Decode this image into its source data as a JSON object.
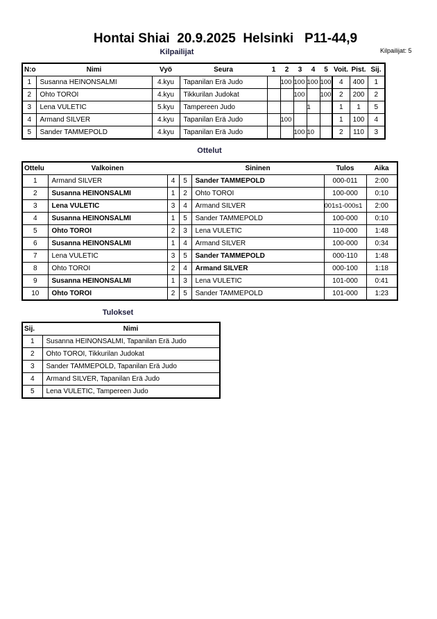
{
  "title": "Hontai Shiai  20.9.2025  Helsinki   P11-44,9",
  "competitors_heading": "Kilpailijat",
  "competitor_count": "Kilpailijat: 5",
  "competitors": {
    "headers": [
      "N:o",
      "Nimi",
      "Vyö",
      "Seura",
      "1",
      "2",
      "3",
      "4",
      "5",
      "Voit.",
      "Pist.",
      "Sij."
    ],
    "rows": [
      [
        "1",
        "Susanna HEINONSALMI",
        "4.kyu",
        "Tapanilan Erä Judo",
        "",
        "100",
        "100",
        "100",
        "100",
        "4",
        "400",
        "1"
      ],
      [
        "2",
        "Ohto TOROI",
        "4.kyu",
        "Tikkurilan Judokat",
        "",
        "",
        "100",
        "",
        "100",
        "2",
        "200",
        "2"
      ],
      [
        "3",
        "Lena VULETIC",
        "5.kyu",
        "Tampereen Judo",
        "",
        "",
        "",
        "1",
        "",
        "1",
        "1",
        "5"
      ],
      [
        "4",
        "Armand SILVER",
        "4.kyu",
        "Tapanilan Erä Judo",
        "",
        "100",
        "",
        "",
        "",
        "1",
        "100",
        "4"
      ],
      [
        "5",
        "Sander TAMMEPOLD",
        "4.kyu",
        "Tapanilan Erä Judo",
        "",
        "",
        "100",
        "10",
        "",
        "2",
        "110",
        "3"
      ]
    ]
  },
  "matches_heading": "Ottelut",
  "matches": {
    "headers": [
      "Ottelu",
      "Valkoinen",
      "",
      "",
      "Sininen",
      "Tulos",
      "Aika"
    ],
    "rows": [
      {
        "no": "1",
        "white": "Armand SILVER",
        "wn": "4",
        "bn": "5",
        "blue": "Sander TAMMEPOLD",
        "result": "000-011",
        "time": "2:00",
        "winner": "blue"
      },
      {
        "no": "2",
        "white": "Susanna HEINONSALMI",
        "wn": "1",
        "bn": "2",
        "blue": "Ohto TOROI",
        "result": "100-000",
        "time": "0:10",
        "winner": "white"
      },
      {
        "no": "3",
        "white": "Lena VULETIC",
        "wn": "3",
        "bn": "4",
        "blue": "Armand SILVER",
        "result": "001s1-000s1",
        "time": "2:00",
        "winner": "white"
      },
      {
        "no": "4",
        "white": "Susanna HEINONSALMI",
        "wn": "1",
        "bn": "5",
        "blue": "Sander TAMMEPOLD",
        "result": "100-000",
        "time": "0:10",
        "winner": "white"
      },
      {
        "no": "5",
        "white": "Ohto TOROI",
        "wn": "2",
        "bn": "3",
        "blue": "Lena VULETIC",
        "result": "110-000",
        "time": "1:48",
        "winner": "white"
      },
      {
        "no": "6",
        "white": "Susanna HEINONSALMI",
        "wn": "1",
        "bn": "4",
        "blue": "Armand SILVER",
        "result": "100-000",
        "time": "0:34",
        "winner": "white"
      },
      {
        "no": "7",
        "white": "Lena VULETIC",
        "wn": "3",
        "bn": "5",
        "blue": "Sander TAMMEPOLD",
        "result": "000-110",
        "time": "1:48",
        "winner": "blue"
      },
      {
        "no": "8",
        "white": "Ohto TOROI",
        "wn": "2",
        "bn": "4",
        "blue": "Armand SILVER",
        "result": "000-100",
        "time": "1:18",
        "winner": "blue"
      },
      {
        "no": "9",
        "white": "Susanna HEINONSALMI",
        "wn": "1",
        "bn": "3",
        "blue": "Lena VULETIC",
        "result": "101-000",
        "time": "0:41",
        "winner": "white"
      },
      {
        "no": "10",
        "white": "Ohto TOROI",
        "wn": "2",
        "bn": "5",
        "blue": "Sander TAMMEPOLD",
        "result": "101-000",
        "time": "1:23",
        "winner": "white"
      }
    ]
  },
  "results_heading": "Tulokset",
  "results": {
    "headers": [
      "Sij.",
      "Nimi"
    ],
    "rows": [
      [
        "1",
        "Susanna HEINONSALMI, Tapanilan Erä Judo"
      ],
      [
        "2",
        "Ohto TOROI, Tikkurilan Judokat"
      ],
      [
        "3",
        "Sander TAMMEPOLD, Tapanilan Erä Judo"
      ],
      [
        "4",
        "Armand SILVER, Tapanilan Erä Judo"
      ],
      [
        "5",
        "Lena VULETIC, Tampereen Judo"
      ]
    ]
  }
}
